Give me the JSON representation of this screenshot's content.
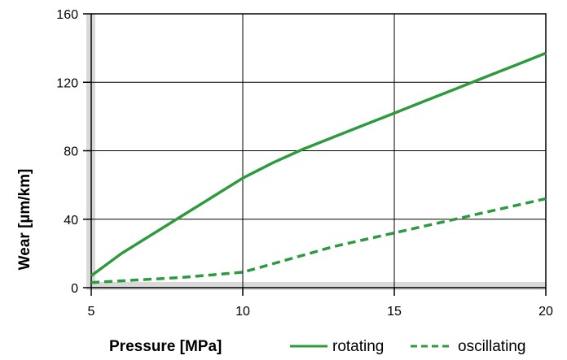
{
  "chart_data": {
    "type": "line",
    "title": "",
    "xlabel": "Pressure [MPa]",
    "ylabel": "Wear [µm/km]",
    "xlim": [
      5,
      20
    ],
    "ylim": [
      0,
      160
    ],
    "x_ticks": [
      "5",
      "10",
      "15",
      "20"
    ],
    "y_ticks": [
      "0",
      "40",
      "80",
      "120",
      "160"
    ],
    "grid": true,
    "legend_position": "bottom-right",
    "series": [
      {
        "name": "rotating",
        "style": "solid",
        "color": "#2e9a3e",
        "x": [
          5,
          6,
          7,
          8,
          9,
          10,
          11,
          12,
          13,
          14,
          15,
          16,
          17,
          18,
          19,
          20
        ],
        "y": [
          7,
          20,
          31,
          42,
          53,
          64,
          73,
          81,
          88,
          95,
          102,
          109,
          116,
          123,
          130,
          137
        ]
      },
      {
        "name": "oscillating",
        "style": "dashed",
        "color": "#2e9a3e",
        "x": [
          5,
          6,
          7,
          8,
          9,
          10,
          11,
          12,
          13,
          14,
          15,
          16,
          17,
          18,
          19,
          20
        ],
        "y": [
          3,
          4,
          5,
          6,
          7.5,
          9,
          14,
          19,
          24,
          28,
          32,
          36,
          40,
          44,
          48,
          52
        ]
      }
    ]
  }
}
